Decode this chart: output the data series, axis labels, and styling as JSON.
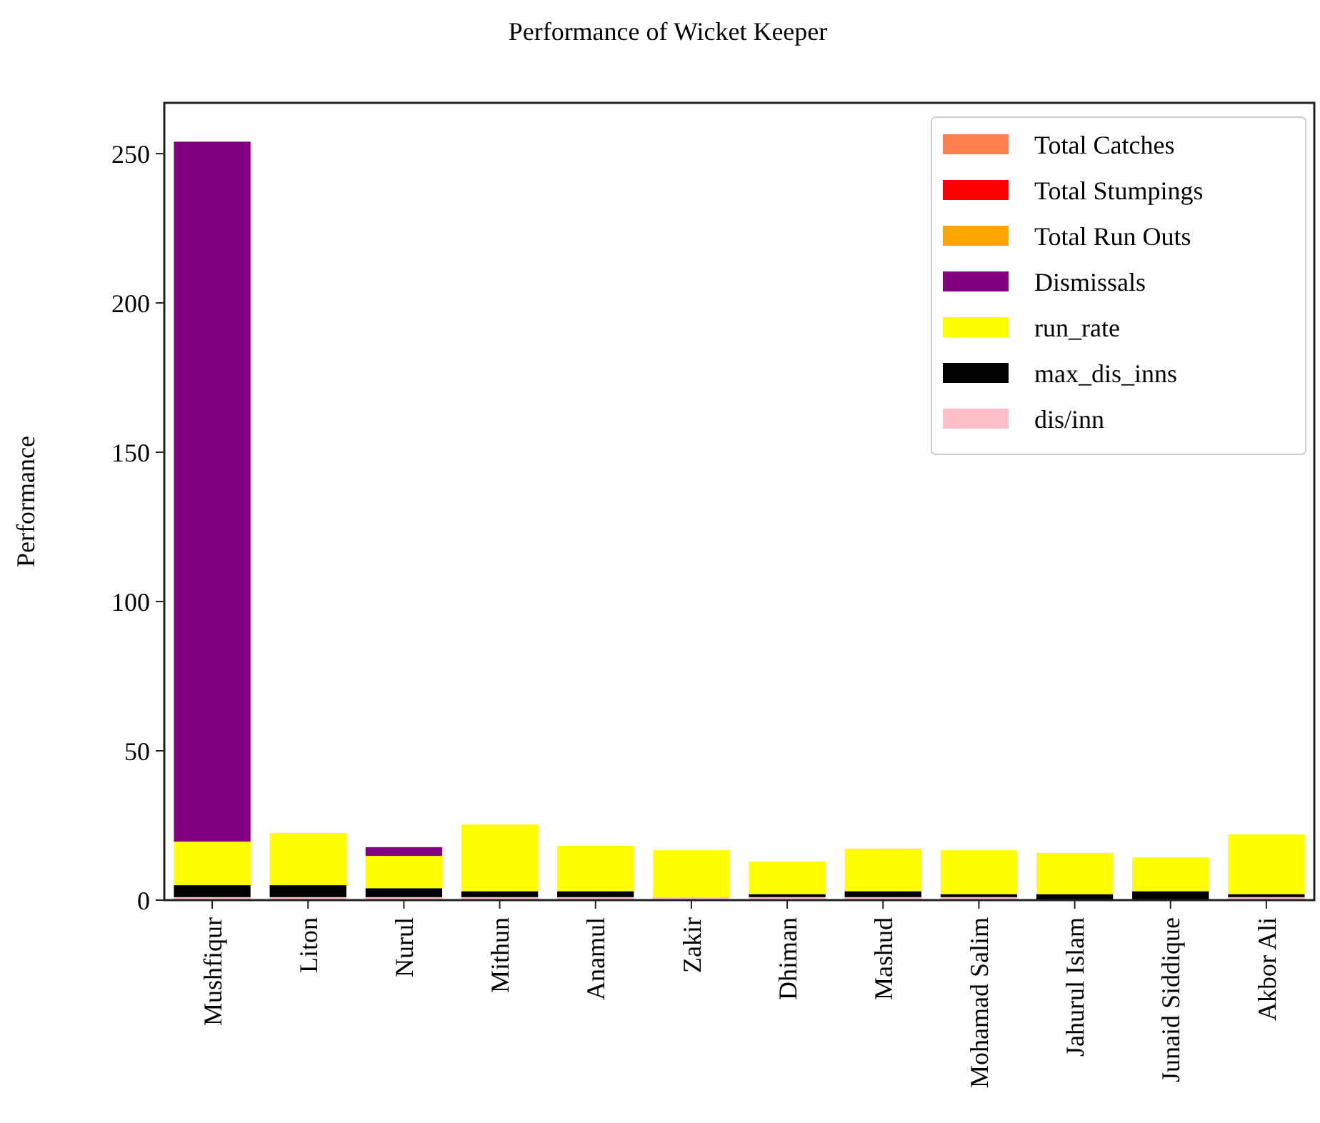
{
  "chart_data": {
    "type": "bar",
    "title": "Performance of Wicket Keeper",
    "ylabel": "Performance",
    "categories": [
      "Mushfiqur",
      "Liton",
      "Nurul",
      "Mithun",
      "Anamul",
      "Zakir",
      "Dhiman",
      "Mashud",
      "Mohamad Salim",
      "Jahurul Islam",
      "Junaid Siddique",
      "Akbor Ali"
    ],
    "series": [
      {
        "name": "dis/inn",
        "color": "#ffc0cb",
        "values": [
          1,
          1,
          1,
          1,
          1,
          1,
          1,
          1,
          1,
          null,
          null,
          1
        ]
      },
      {
        "name": "max_dis_inns",
        "color": "#000000",
        "values": [
          4,
          4,
          3,
          2,
          2,
          null,
          1,
          2,
          1,
          2,
          3,
          1
        ]
      },
      {
        "name": "run_rate",
        "color": "#ffff00",
        "values": [
          14.6,
          17.5,
          10.8,
          22.3,
          15.2,
          15.7,
          10.9,
          14.2,
          14.7,
          13.8,
          11.3,
          20
        ]
      },
      {
        "name": "Dismissals",
        "color": "#800080",
        "values": [
          234.4,
          null,
          2.9,
          null,
          null,
          null,
          null,
          null,
          null,
          null,
          null,
          null
        ]
      },
      {
        "name": "Total Run Outs",
        "color": "#ffa500",
        "values": [
          null,
          null,
          null,
          null,
          null,
          null,
          null,
          null,
          null,
          null,
          null,
          null
        ]
      },
      {
        "name": "Total Stumpings",
        "color": "#ff0000",
        "values": [
          null,
          null,
          null,
          null,
          null,
          null,
          null,
          null,
          null,
          null,
          null,
          null
        ]
      },
      {
        "name": "Total Catches",
        "color": "#ff7f50",
        "values": [
          null,
          null,
          null,
          null,
          null,
          null,
          null,
          null,
          null,
          null,
          null,
          null
        ]
      }
    ],
    "stacked": true,
    "ylim": [
      0,
      267
    ],
    "yticks": [
      0,
      50,
      100,
      150,
      200,
      250
    ],
    "legend": "top right"
  }
}
